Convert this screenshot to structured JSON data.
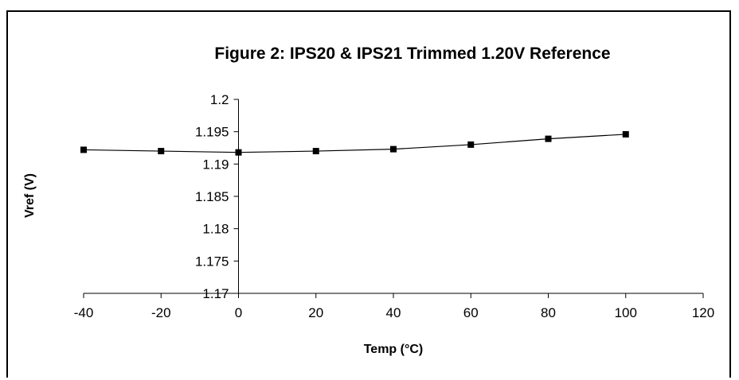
{
  "chart_data": {
    "type": "line",
    "title": "Figure 2: IPS20 & IPS21 Trimmed 1.20V Reference",
    "xlabel": "Temp (°C)",
    "ylabel": "Vref (V)",
    "xlim": [
      -40,
      120
    ],
    "ylim": [
      1.17,
      1.2
    ],
    "xticks": [
      "-40",
      "-20",
      "0",
      "20",
      "40",
      "60",
      "80",
      "100",
      "120"
    ],
    "yticks": [
      "1.17",
      "1.175",
      "1.18",
      "1.185",
      "1.19",
      "1.195",
      "1.2"
    ],
    "grid": false,
    "legend": "none",
    "series": [
      {
        "x": [
          -40,
          -20,
          0,
          20,
          40,
          60,
          80,
          100
        ],
        "y": [
          1.1922,
          1.192,
          1.1918,
          1.192,
          1.1923,
          1.193,
          1.1939,
          1.1946
        ]
      }
    ],
    "colors": {
      "line": "#000000",
      "marker": "#000000",
      "axis": "#000000"
    }
  }
}
